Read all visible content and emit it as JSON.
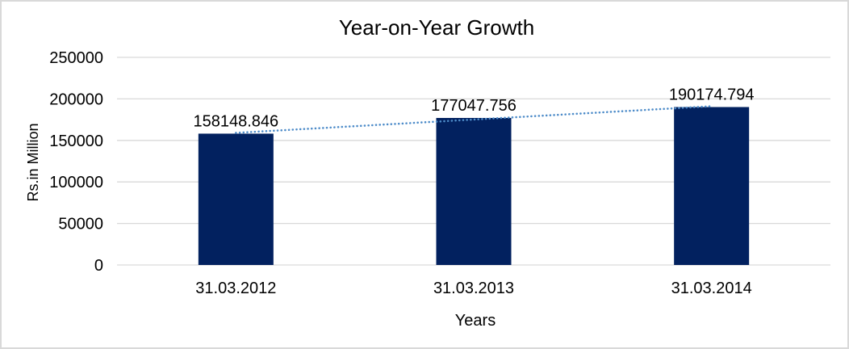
{
  "chart_data": {
    "type": "bar",
    "title": "Year-on-Year Growth",
    "xlabel": "Years",
    "ylabel": "Rs.in Million",
    "categories": [
      "31.03.2012",
      "31.03.2013",
      "31.03.2014"
    ],
    "values": [
      158148.846,
      177047.756,
      190174.794
    ],
    "data_labels": [
      "158148.846",
      "177047.756",
      "190174.794"
    ],
    "ylim": [
      0,
      250000
    ],
    "yticks": [
      0,
      50000,
      100000,
      150000,
      200000,
      250000
    ],
    "ytick_labels": [
      "0",
      "50000",
      "100000",
      "150000",
      "200000",
      "250000"
    ],
    "grid": true,
    "legend": "none",
    "trendline": {
      "type": "linear",
      "style": "dotted"
    },
    "colors": {
      "bar": "#02215F",
      "trendline": "#4E8CC9",
      "gridline": "#D9D9D9",
      "frame_border": "#D9D9D9",
      "text": "#000000",
      "background": "#FFFFFF"
    }
  }
}
